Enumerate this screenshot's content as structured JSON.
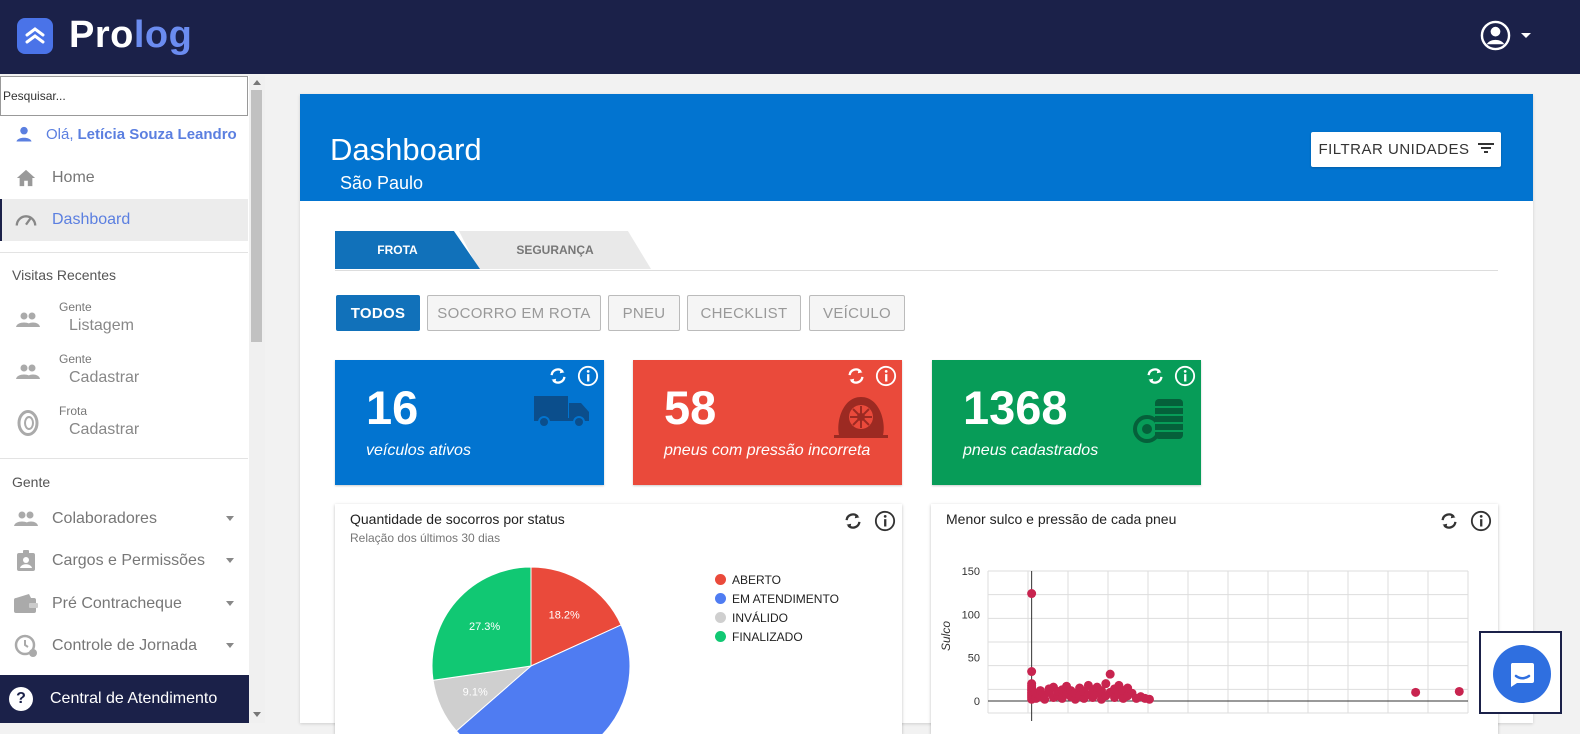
{
  "header": {
    "brand_main": "Pro",
    "brand_accent": "log"
  },
  "sidebar": {
    "search_placeholder": "Pesquisar...",
    "greeting_prefix": "Olá,",
    "user_name": "Letícia Souza Leandro",
    "nav": [
      {
        "label": "Home",
        "icon": "home-icon"
      },
      {
        "label": "Dashboard",
        "icon": "speedometer-icon"
      }
    ],
    "recent_title": "Visitas Recentes",
    "recent": [
      {
        "category": "Gente",
        "name": "Listagem",
        "icon": "people-icon"
      },
      {
        "category": "Gente",
        "name": "Cadastrar",
        "icon": "people-icon"
      },
      {
        "category": "Frota",
        "name": "Cadastrar",
        "icon": "tire-icon"
      }
    ],
    "section_title": "Gente",
    "sections": [
      {
        "label": "Colaboradores",
        "icon": "people-icon"
      },
      {
        "label": "Cargos e Permissões",
        "icon": "clipboard-user-icon"
      },
      {
        "label": "Pré Contracheque",
        "icon": "wallet-icon"
      },
      {
        "label": "Controle de Jornada",
        "icon": "clock-user-icon"
      }
    ],
    "help_label": "Central de Atendimento"
  },
  "dashboard": {
    "title": "Dashboard",
    "subtitle": "São Paulo",
    "filter_label": "FILTRAR UNIDADES",
    "tabs": [
      "FROTA",
      "SEGURANÇA"
    ],
    "chips": [
      "TODOS",
      "SOCORRO EM ROTA",
      "PNEU",
      "CHECKLIST",
      "VEÍCULO"
    ],
    "stats": [
      {
        "value": "16",
        "label": "veículos ativos",
        "color": "#0274d0",
        "icon": "truck-icon"
      },
      {
        "value": "58",
        "label": "pneus com pressão incorreta",
        "color": "#ea4a3b",
        "icon": "flat-tire-icon"
      },
      {
        "value": "1368",
        "label": "pneus cadastrados",
        "color": "#079c58",
        "icon": "tire-stack-icon"
      }
    ],
    "pie_panel": {
      "title": "Quantidade de socorros por status",
      "subtitle": "Relação dos últimos 30 dias"
    },
    "scatter_panel": {
      "title": "Menor sulco e pressão de cada pneu",
      "ylabel": "Sulco"
    }
  },
  "chart_data": [
    {
      "type": "pie",
      "title": "Quantidade de socorros por status",
      "subtitle": "Relação dos últimos 30 dias",
      "categories": [
        "ABERTO",
        "EM ATENDIMENTO",
        "INVÁLIDO",
        "FINALIZADO"
      ],
      "values": [
        18.2,
        45.4,
        9.1,
        27.3
      ],
      "slice_labels": [
        "18.2%",
        "",
        "9.1%",
        "27.3%"
      ],
      "colors": [
        "#ea4a3b",
        "#4f7cf2",
        "#cfcfcf",
        "#11c873"
      ],
      "legend_position": "right"
    },
    {
      "type": "scatter",
      "title": "Menor sulco e pressão de cada pneu",
      "ylabel": "Sulco",
      "xlabel": "",
      "yticks": [
        0,
        50,
        100,
        150
      ],
      "ylim": [
        0,
        150
      ],
      "xlim": [
        -10,
        100
      ],
      "grid": true,
      "color": "#c8244f",
      "points": [
        [
          0,
          124
        ],
        [
          0,
          34
        ],
        [
          0,
          2
        ],
        [
          0,
          4
        ],
        [
          0,
          6
        ],
        [
          0,
          8
        ],
        [
          0,
          10
        ],
        [
          0,
          12
        ],
        [
          0,
          14
        ],
        [
          0,
          16
        ],
        [
          0,
          18
        ],
        [
          0,
          20
        ],
        [
          1,
          3
        ],
        [
          1,
          9
        ],
        [
          2,
          5
        ],
        [
          2,
          12
        ],
        [
          3,
          2
        ],
        [
          3,
          7
        ],
        [
          4,
          10
        ],
        [
          4,
          14
        ],
        [
          5,
          4
        ],
        [
          5,
          16
        ],
        [
          6,
          6
        ],
        [
          6,
          11
        ],
        [
          7,
          3
        ],
        [
          7,
          13
        ],
        [
          8,
          8
        ],
        [
          8,
          17
        ],
        [
          9,
          5
        ],
        [
          9,
          12
        ],
        [
          10,
          2
        ],
        [
          10,
          9
        ],
        [
          11,
          15
        ],
        [
          11,
          6
        ],
        [
          12,
          3
        ],
        [
          12,
          11
        ],
        [
          13,
          7
        ],
        [
          13,
          18
        ],
        [
          14,
          4
        ],
        [
          14,
          13
        ],
        [
          15,
          9
        ],
        [
          15,
          16
        ],
        [
          16,
          2
        ],
        [
          16,
          12
        ],
        [
          17,
          6
        ],
        [
          17,
          20
        ],
        [
          18,
          31
        ],
        [
          18,
          10
        ],
        [
          19,
          4
        ],
        [
          19,
          14
        ],
        [
          20,
          8
        ],
        [
          20,
          18
        ],
        [
          21,
          3
        ],
        [
          21,
          12
        ],
        [
          22,
          6
        ],
        [
          22,
          15
        ],
        [
          23,
          9
        ],
        [
          24,
          3
        ],
        [
          25,
          5
        ],
        [
          26,
          3
        ],
        [
          27,
          2
        ],
        [
          88,
          10
        ],
        [
          98,
          11
        ]
      ]
    }
  ]
}
